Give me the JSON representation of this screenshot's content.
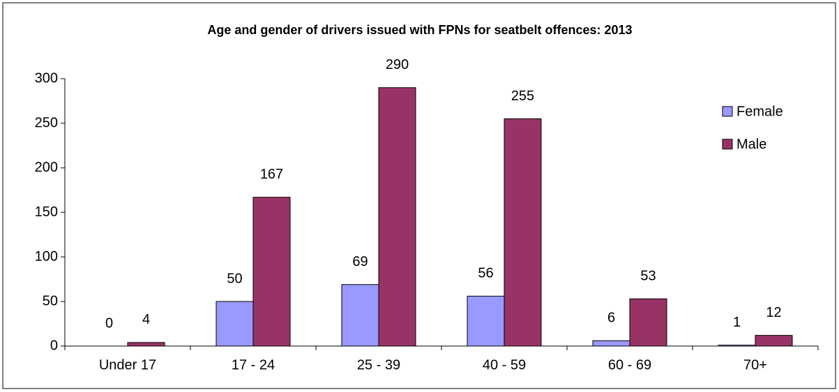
{
  "chart_data": {
    "type": "bar",
    "title": "Age and gender of drivers issued with FPNs for seatbelt offences: 2013",
    "categories": [
      "Under 17",
      "17 - 24",
      "25 - 39",
      "40 - 59",
      "60 - 69",
      "70+"
    ],
    "series": [
      {
        "name": "Female",
        "color": "#9999ff",
        "values": [
          0,
          50,
          69,
          56,
          6,
          1
        ]
      },
      {
        "name": "Male",
        "color": "#993366",
        "values": [
          4,
          167,
          290,
          255,
          53,
          12
        ]
      }
    ],
    "ylim": [
      0,
      300
    ],
    "yticks": [
      0,
      50,
      100,
      150,
      200,
      250,
      300
    ],
    "grid": false,
    "legend": "right"
  }
}
